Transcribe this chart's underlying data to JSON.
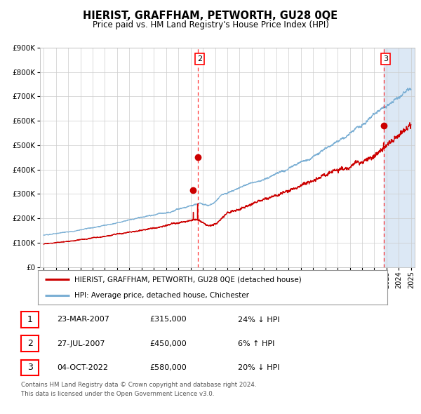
{
  "title": "HIERIST, GRAFFHAM, PETWORTH, GU28 0QE",
  "subtitle": "Price paid vs. HM Land Registry's House Price Index (HPI)",
  "red_label": "HIERIST, GRAFFHAM, PETWORTH, GU28 0QE (detached house)",
  "blue_label": "HPI: Average price, detached house, Chichester",
  "table_rows": [
    {
      "num": 1,
      "date": "23-MAR-2007",
      "price": "£315,000",
      "pct": "24% ↓ HPI"
    },
    {
      "num": 2,
      "date": "27-JUL-2007",
      "price": "£450,000",
      "pct": "6% ↑ HPI"
    },
    {
      "num": 3,
      "date": "04-OCT-2022",
      "price": "£580,000",
      "pct": "20% ↓ HPI"
    }
  ],
  "t1_year": 2007.22,
  "t2_year": 2007.57,
  "t3_year": 2022.76,
  "t1_price": 315000,
  "t2_price": 450000,
  "t3_price": 580000,
  "footnote1": "Contains HM Land Registry data © Crown copyright and database right 2024.",
  "footnote2": "This data is licensed under the Open Government Licence v3.0.",
  "x_start_year": 1995,
  "x_end_year": 2025,
  "y_max": 900000,
  "y_ticks": [
    0,
    100000,
    200000,
    300000,
    400000,
    500000,
    600000,
    700000,
    800000,
    900000
  ],
  "bg_color": "#ffffff",
  "grid_color": "#cccccc",
  "red_color": "#cc0000",
  "blue_color": "#7bafd4",
  "highlight_bg": "#dce8f5"
}
